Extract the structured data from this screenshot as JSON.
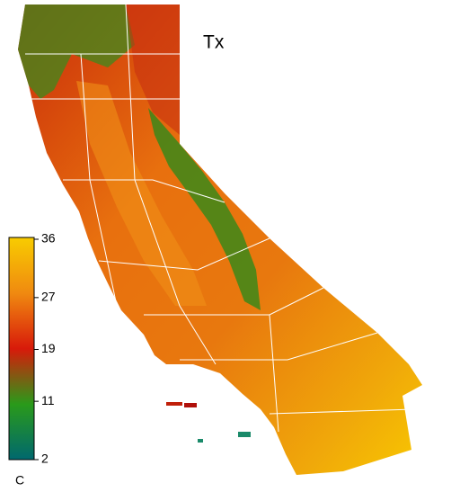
{
  "title": "Tx",
  "colorbar": {
    "lim": [
      2,
      36
    ],
    "ticks": [
      36,
      27,
      19,
      11,
      2
    ],
    "unit": "C",
    "colors": [
      "#00686e",
      "#2a9a1a",
      "#d81a0a",
      "#f08a10",
      "#f8cc00"
    ]
  }
}
